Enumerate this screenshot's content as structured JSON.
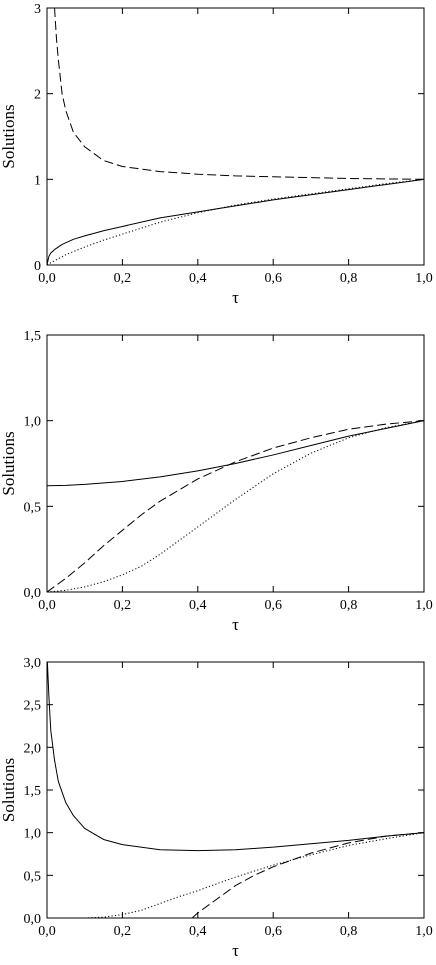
{
  "chart_data": [
    {
      "type": "line",
      "title": "",
      "xlabel": "τ",
      "ylabel": "Solutions",
      "xlim": [
        0,
        1
      ],
      "ylim": [
        0,
        3
      ],
      "x_ticks": [
        "0,0",
        "0,2",
        "0,4",
        "0,6",
        "0,8",
        "1,0"
      ],
      "y_ticks": [
        "0",
        "1",
        "2",
        "3"
      ],
      "x_tick_values": [
        0,
        0.2,
        0.4,
        0.6,
        0.8,
        1.0
      ],
      "y_tick_values": [
        0,
        1,
        2,
        3
      ],
      "grid": false,
      "series": [
        {
          "style": "solid",
          "x": [
            0,
            0.005,
            0.01,
            0.02,
            0.04,
            0.07,
            0.1,
            0.15,
            0.2,
            0.3,
            0.4,
            0.5,
            0.6,
            0.7,
            0.8,
            0.9,
            1.0
          ],
          "y": [
            0,
            0.1,
            0.14,
            0.18,
            0.24,
            0.3,
            0.34,
            0.4,
            0.45,
            0.55,
            0.62,
            0.69,
            0.76,
            0.82,
            0.88,
            0.94,
            1.0
          ]
        },
        {
          "style": "dashed",
          "x": [
            0.02,
            0.025,
            0.03,
            0.04,
            0.05,
            0.07,
            0.1,
            0.15,
            0.2,
            0.3,
            0.4,
            0.5,
            0.6,
            0.7,
            0.8,
            0.9,
            1.0
          ],
          "y": [
            3.0,
            2.65,
            2.4,
            2.0,
            1.8,
            1.55,
            1.38,
            1.22,
            1.15,
            1.09,
            1.06,
            1.04,
            1.03,
            1.02,
            1.01,
            1.005,
            1.0
          ]
        },
        {
          "style": "dotted",
          "x": [
            0,
            0.02,
            0.05,
            0.1,
            0.15,
            0.2,
            0.3,
            0.4,
            0.5,
            0.6,
            0.7,
            0.8,
            0.9,
            1.0
          ],
          "y": [
            0,
            0.05,
            0.12,
            0.21,
            0.29,
            0.36,
            0.5,
            0.61,
            0.7,
            0.77,
            0.83,
            0.89,
            0.95,
            1.0
          ]
        }
      ]
    },
    {
      "type": "line",
      "title": "",
      "xlabel": "τ",
      "ylabel": "Solutions",
      "xlim": [
        0,
        1
      ],
      "ylim": [
        0,
        1.5
      ],
      "x_ticks": [
        "0,0",
        "0,2",
        "0,4",
        "0,6",
        "0,8",
        "1,0"
      ],
      "y_ticks": [
        "0,0",
        "0,5",
        "1,0",
        "1,5"
      ],
      "x_tick_values": [
        0,
        0.2,
        0.4,
        0.6,
        0.8,
        1.0
      ],
      "y_tick_values": [
        0,
        0.5,
        1.0,
        1.5
      ],
      "grid": false,
      "series": [
        {
          "style": "solid",
          "x": [
            0,
            0.05,
            0.1,
            0.2,
            0.3,
            0.4,
            0.5,
            0.6,
            0.7,
            0.8,
            0.9,
            1.0
          ],
          "y": [
            0.62,
            0.622,
            0.628,
            0.645,
            0.672,
            0.707,
            0.75,
            0.8,
            0.855,
            0.91,
            0.955,
            1.0
          ]
        },
        {
          "style": "dashed",
          "x": [
            0,
            0.05,
            0.1,
            0.15,
            0.2,
            0.25,
            0.3,
            0.4,
            0.5,
            0.6,
            0.7,
            0.8,
            0.9,
            1.0
          ],
          "y": [
            0,
            0.08,
            0.17,
            0.27,
            0.36,
            0.45,
            0.53,
            0.66,
            0.76,
            0.84,
            0.9,
            0.95,
            0.98,
            1.0
          ]
        },
        {
          "style": "dotted",
          "x": [
            0,
            0.05,
            0.1,
            0.15,
            0.2,
            0.25,
            0.3,
            0.35,
            0.4,
            0.45,
            0.5,
            0.6,
            0.7,
            0.8,
            0.9,
            1.0
          ],
          "y": [
            0,
            0.01,
            0.03,
            0.06,
            0.1,
            0.15,
            0.22,
            0.3,
            0.38,
            0.46,
            0.54,
            0.69,
            0.81,
            0.9,
            0.96,
            1.0
          ]
        }
      ]
    },
    {
      "type": "line",
      "title": "",
      "xlabel": "τ",
      "ylabel": "Solutions",
      "xlim": [
        0,
        1
      ],
      "ylim": [
        0,
        3
      ],
      "x_ticks": [
        "0,0",
        "0,2",
        "0,4",
        "0,6",
        "0,8",
        "1,0"
      ],
      "y_ticks": [
        "0,0",
        "0,5",
        "1,0",
        "1,5",
        "2,0",
        "2,5",
        "3,0"
      ],
      "x_tick_values": [
        0,
        0.2,
        0.4,
        0.6,
        0.8,
        1.0
      ],
      "y_tick_values": [
        0,
        0.5,
        1.0,
        1.5,
        2.0,
        2.5,
        3.0
      ],
      "grid": false,
      "series": [
        {
          "style": "solid",
          "x": [
            0.001,
            0.005,
            0.01,
            0.02,
            0.03,
            0.05,
            0.07,
            0.1,
            0.15,
            0.2,
            0.3,
            0.4,
            0.5,
            0.6,
            0.7,
            0.8,
            0.9,
            1.0
          ],
          "y": [
            3.0,
            2.6,
            2.2,
            1.85,
            1.6,
            1.35,
            1.2,
            1.05,
            0.92,
            0.86,
            0.8,
            0.79,
            0.8,
            0.83,
            0.87,
            0.91,
            0.96,
            1.0
          ]
        },
        {
          "style": "dashed",
          "x": [
            0.385,
            0.4,
            0.45,
            0.5,
            0.55,
            0.6,
            0.7,
            0.8,
            0.9,
            1.0
          ],
          "y": [
            0,
            0.06,
            0.22,
            0.38,
            0.5,
            0.6,
            0.76,
            0.88,
            0.96,
            1.0
          ]
        },
        {
          "style": "dotted",
          "x": [
            0,
            0.1,
            0.15,
            0.2,
            0.25,
            0.3,
            0.35,
            0.4,
            0.45,
            0.5,
            0.6,
            0.7,
            0.8,
            0.9,
            1.0
          ],
          "y": [
            0,
            0,
            0.01,
            0.04,
            0.09,
            0.17,
            0.25,
            0.32,
            0.4,
            0.48,
            0.62,
            0.74,
            0.85,
            0.93,
            1.0
          ]
        }
      ]
    }
  ]
}
